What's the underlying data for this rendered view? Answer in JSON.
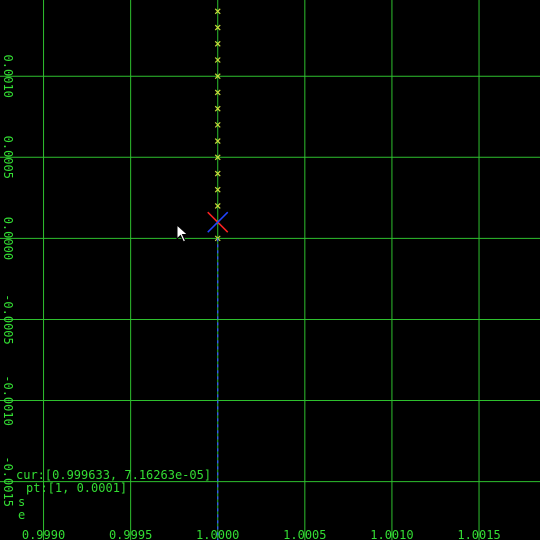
{
  "chart_data": {
    "type": "scatter",
    "title": "",
    "xlabel": "",
    "ylabel": "",
    "xlim": [
      0.99875,
      1.00185
    ],
    "ylim": [
      -0.00186,
      0.00147
    ],
    "grid": true,
    "x_ticks": [
      0.999,
      0.9995,
      1.0,
      1.0005,
      1.001,
      1.0015
    ],
    "x_tick_labels": [
      "0.9990",
      "0.9995",
      "1.0000",
      "1.0005",
      "1.0010",
      "1.0015"
    ],
    "y_ticks": [
      0.001,
      0.0005,
      0.0,
      -0.0005,
      -0.001,
      -0.0015
    ],
    "y_tick_labels": [
      "0.0010",
      "0.0005",
      "0.0000",
      "-0.0005",
      "-0.0010",
      "-0.0015"
    ],
    "series": [
      {
        "marker": "x",
        "color": "#c8dc3c",
        "x": [
          1,
          1,
          1,
          1,
          1,
          1,
          1,
          1,
          1,
          1,
          1,
          1,
          1,
          1,
          1
        ],
        "y": [
          0.0014,
          0.0013,
          0.0012,
          0.0011,
          0.001,
          0.0009,
          0.0008,
          0.0007,
          0.0006,
          0.0005,
          0.0004,
          0.0003,
          0.0002,
          0.0001,
          0.0
        ]
      },
      {
        "marker": "dashed-line",
        "color": "#3355ff",
        "x": [
          1,
          1
        ],
        "y": [
          0.0,
          -0.00186
        ]
      }
    ],
    "selected_point": {
      "x": 1,
      "y": 0.0001,
      "colors": [
        "#ff2222",
        "#2244ff"
      ]
    }
  },
  "hud": {
    "cursor_readout": "cur:[0.999633, 7.16263e-05]",
    "point_readout": "pt:[1, 0.0001]",
    "key_s": "s",
    "key_e": "e"
  },
  "colors": {
    "background": "#000000",
    "grid": "#2ec02e",
    "text": "#33dd33"
  },
  "icons": {
    "pointer": "mouse-pointer-icon"
  }
}
